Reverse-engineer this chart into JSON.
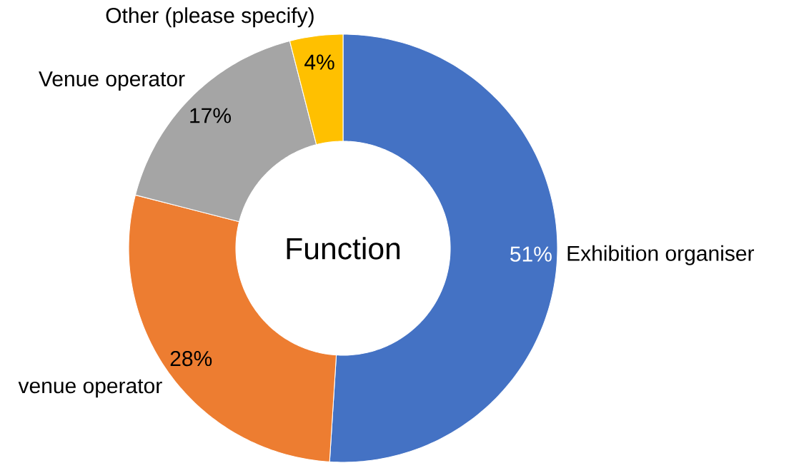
{
  "chart_data": {
    "type": "donut",
    "title": "Function",
    "categories": [
      "Exhibition organiser",
      "venue operator",
      "Venue operator",
      "Other (please specify)"
    ],
    "values": [
      51,
      28,
      17,
      4
    ],
    "colors": [
      "#4472c4",
      "#ed7d31",
      "#a5a5a5",
      "#ffc000"
    ],
    "value_labels": [
      "51%",
      "28%",
      "17%",
      "4%"
    ]
  }
}
